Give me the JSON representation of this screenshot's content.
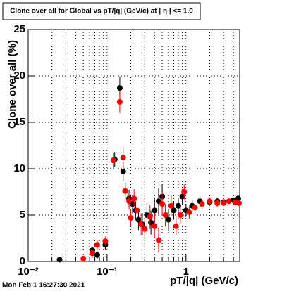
{
  "chart_data": {
    "type": "scatter",
    "title": "Clone  over all for Global vs pT/|q| (GeV/c) at | η | <= 1.0",
    "x_label": "pT/|q| (GeV/c)",
    "y_label": "Clone  over all (%)",
    "timestamp": "Mon Feb  1 16:27:30 2021",
    "log_x": true,
    "grid": true,
    "xlim": [
      0.01,
      4.8
    ],
    "ylim": [
      0,
      25
    ],
    "xticks": [
      {
        "value": 0.01,
        "label": "10⁻²"
      },
      {
        "value": 0.1,
        "label": "10⁻¹"
      },
      1
    ],
    "xminorticks": [
      0.02,
      0.03,
      0.04,
      0.05,
      0.06,
      0.07,
      0.08,
      0.09,
      0.2,
      0.3,
      0.4,
      0.5,
      0.6,
      0.7,
      0.8,
      0.9,
      2,
      3,
      4
    ],
    "yticks": [
      0,
      5,
      10,
      15,
      20,
      25
    ],
    "series": [
      {
        "color": "#000000",
        "x": [
          0.025,
          0.065,
          0.075,
          0.095,
          0.125,
          0.145,
          0.16,
          0.17,
          0.19,
          0.21,
          0.23,
          0.25,
          0.28,
          0.32,
          0.36,
          0.4,
          0.45,
          0.5,
          0.55,
          0.6,
          0.7,
          0.8,
          0.9,
          1.0,
          1.2,
          1.5,
          2.0,
          2.5,
          3.0,
          4.0,
          4.6
        ],
        "values": [
          0.2,
          1.2,
          0.7,
          1.8,
          11,
          18.7,
          9.7,
          7.6,
          6.8,
          6.2,
          5.5,
          4.5,
          4.0,
          5.0,
          4.2,
          5.5,
          6.5,
          7.0,
          5.0,
          4.5,
          5.5,
          6.0,
          7.0,
          5.5,
          6.0,
          6.5,
          6.4,
          6.5,
          6.4,
          6.6,
          6.8
        ],
        "errors": [
          0.2,
          0.4,
          0.4,
          0.5,
          0.8,
          1.2,
          1.0,
          0.9,
          0.9,
          1.0,
          1.0,
          1.1,
          1.2,
          1.3,
          1.3,
          1.4,
          1.4,
          1.3,
          1.2,
          1.2,
          1.0,
          0.9,
          0.8,
          0.7,
          0.6,
          0.5,
          0.4,
          0.4,
          0.3,
          0.3,
          0.3
        ]
      },
      {
        "color": "#ff0000",
        "x": [
          0.05,
          0.065,
          0.075,
          0.095,
          0.12,
          0.145,
          0.16,
          0.17,
          0.19,
          0.2,
          0.22,
          0.24,
          0.27,
          0.3,
          0.35,
          0.4,
          0.45,
          0.5,
          0.55,
          0.65,
          0.75,
          0.85,
          0.95,
          1.1,
          1.3,
          1.6,
          2.0,
          2.5,
          3.0,
          3.5,
          4.2,
          4.7
        ],
        "values": [
          0.3,
          0.9,
          1.8,
          2.2,
          10.9,
          17.2,
          11.2,
          7.6,
          6.5,
          4.7,
          6.8,
          5.5,
          4.0,
          3.5,
          4.8,
          3.8,
          2.3,
          6.2,
          5.0,
          6.0,
          3.8,
          5.0,
          7.5,
          5.3,
          5.8,
          6.2,
          6.5,
          6.3,
          6.3,
          6.5,
          6.4,
          6.3
        ],
        "errors": [
          0.2,
          0.4,
          0.5,
          0.5,
          0.8,
          1.2,
          1.2,
          0.9,
          0.9,
          0.9,
          1.0,
          1.1,
          1.2,
          1.2,
          1.3,
          1.3,
          1.3,
          1.3,
          1.2,
          1.1,
          1.0,
          0.9,
          0.8,
          0.7,
          0.6,
          0.5,
          0.4,
          0.4,
          0.3,
          0.3,
          0.3,
          0.3
        ]
      }
    ]
  }
}
